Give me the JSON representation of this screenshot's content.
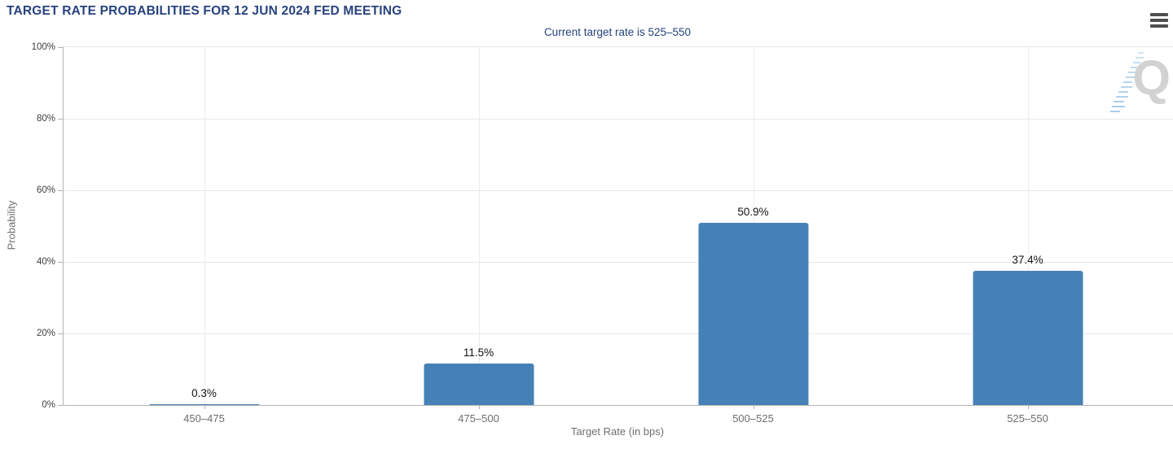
{
  "header": {
    "title": "TARGET RATE PROBABILITIES FOR 12 JUN 2024 FED MEETING"
  },
  "toolbar": {
    "menu_icon": "hamburger-menu-icon"
  },
  "chart_data": {
    "type": "bar",
    "title": "TARGET RATE PROBABILITIES FOR 12 JUN 2024 FED MEETING",
    "subtitle": "Current target rate is 525–550",
    "categories": [
      "450–475",
      "475–500",
      "500–525",
      "525–550"
    ],
    "values": [
      0.3,
      11.5,
      50.9,
      37.4
    ],
    "data_labels": [
      "0.3%",
      "11.5%",
      "50.9%",
      "37.4%"
    ],
    "xlabel": "Target Rate (in bps)",
    "ylabel": "Probability",
    "ylim": [
      0,
      100
    ],
    "ytick_labels": [
      "0%",
      "20%",
      "40%",
      "60%",
      "80%",
      "100%"
    ],
    "grid": "horizontal every 20%, vertical at category centers",
    "legend": "none",
    "bar_color": "#4581B6"
  },
  "watermark": {
    "letter": "Q"
  },
  "colors": {
    "title_navy": "#27427D",
    "bar_blue": "#4581B6",
    "axis_line": "#B3B3B3",
    "grid_line": "#E8E8E8",
    "y_tick_text": "#3F3F3F",
    "x_tick_text": "#6E6E6E",
    "data_label_text": "#121212",
    "menu_icon_gray": "#4F4F4F",
    "watermark_gray": "#D2D2D2",
    "watermark_blue": "#A9CCE9"
  }
}
